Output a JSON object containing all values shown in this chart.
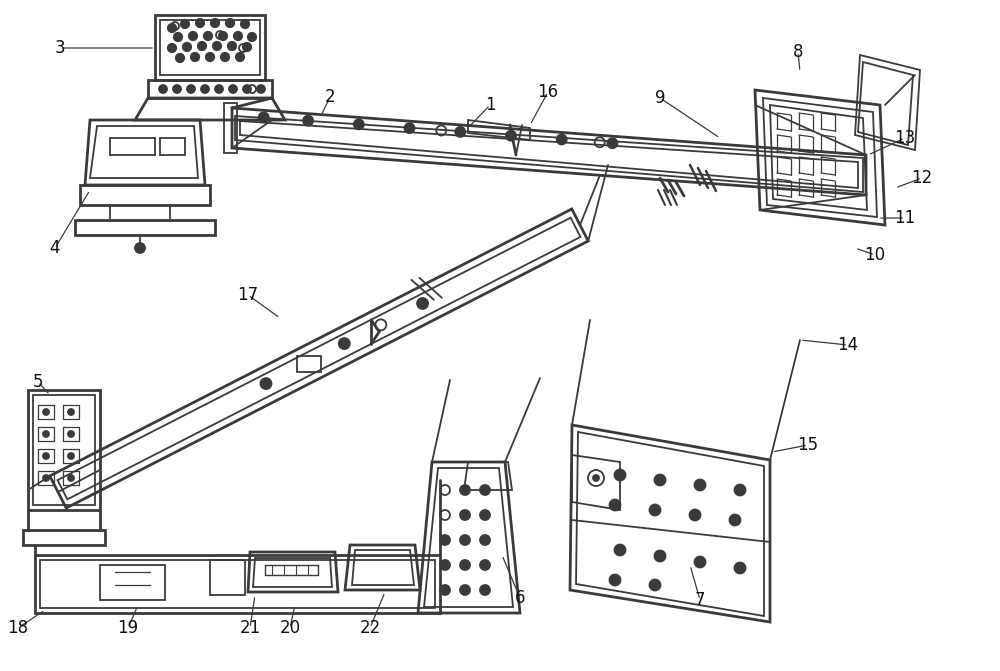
{
  "bg_color": "#ffffff",
  "lc": "#3a3a3a",
  "lw": 1.3,
  "tlw": 2.0,
  "figsize": [
    10.0,
    6.71
  ],
  "dpi": 100
}
